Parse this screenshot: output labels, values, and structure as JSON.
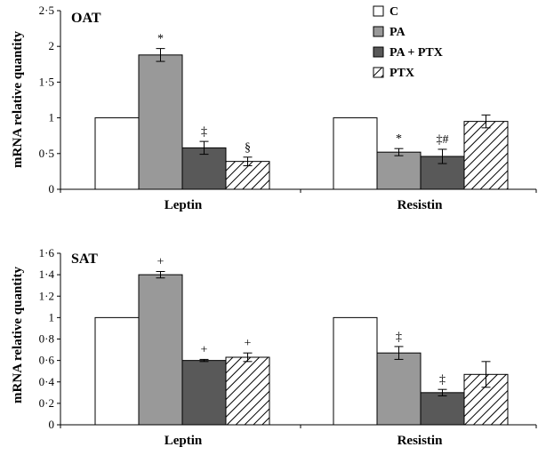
{
  "legend": [
    {
      "name": "C",
      "color": "#ffffff",
      "pattern": "none"
    },
    {
      "name": "PA",
      "color": "#999999",
      "pattern": "none"
    },
    {
      "name": "PA + PTX",
      "color": "#595959",
      "pattern": "none"
    },
    {
      "name": "PTX",
      "color": "#ffffff",
      "pattern": "hatch"
    }
  ],
  "chart_data": [
    {
      "type": "bar",
      "panel_label": "OAT",
      "ylabel": "mRNA relative quantity",
      "ylim": [
        0,
        2.5
      ],
      "yticks": [
        "0",
        "0·5",
        "1",
        "1·5",
        "2",
        "2·5"
      ],
      "ytick_values": [
        0,
        0.5,
        1,
        1.5,
        2,
        2.5
      ],
      "categories": [
        "Leptin",
        "Resistin"
      ],
      "series": [
        {
          "name": "C",
          "values": [
            1.0,
            1.0
          ],
          "errors": [
            null,
            null
          ],
          "marks": [
            "",
            ""
          ]
        },
        {
          "name": "PA",
          "values": [
            1.88,
            0.52
          ],
          "errors": [
            0.09,
            0.05
          ],
          "marks": [
            "*",
            "*"
          ]
        },
        {
          "name": "PA + PTX",
          "values": [
            0.58,
            0.46
          ],
          "errors": [
            0.09,
            0.1
          ],
          "marks": [
            "‡",
            "‡#"
          ]
        },
        {
          "name": "PTX",
          "values": [
            0.39,
            0.95
          ],
          "errors": [
            0.06,
            0.09
          ],
          "marks": [
            "§",
            ""
          ]
        }
      ]
    },
    {
      "type": "bar",
      "panel_label": "SAT",
      "ylabel": "mRNA relative quantity",
      "ylim": [
        0,
        1.6
      ],
      "yticks": [
        "0",
        "0·2",
        "0·4",
        "0·6",
        "0·8",
        "1",
        "1·2",
        "1·4",
        "1·6"
      ],
      "ytick_values": [
        0,
        0.2,
        0.4,
        0.6,
        0.8,
        1,
        1.2,
        1.4,
        1.6
      ],
      "categories": [
        "Leptin",
        "Resistin"
      ],
      "series": [
        {
          "name": "C",
          "values": [
            1.0,
            1.0
          ],
          "errors": [
            null,
            null
          ],
          "marks": [
            "",
            ""
          ]
        },
        {
          "name": "PA",
          "values": [
            1.4,
            0.67
          ],
          "errors": [
            0.03,
            0.06
          ],
          "marks": [
            "+",
            "‡"
          ]
        },
        {
          "name": "PA + PTX",
          "values": [
            0.6,
            0.3
          ],
          "errors": [
            0.01,
            0.03
          ],
          "marks": [
            "+",
            "‡"
          ]
        },
        {
          "name": "PTX",
          "values": [
            0.63,
            0.47
          ],
          "errors": [
            0.04,
            0.12
          ],
          "marks": [
            "+",
            ""
          ]
        }
      ]
    }
  ]
}
